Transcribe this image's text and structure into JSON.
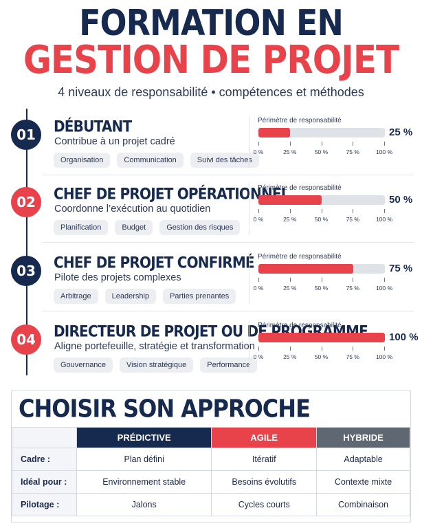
{
  "header": {
    "title_line1": "FORMATION EN",
    "title_line2": "GESTION DE PROJET",
    "subtitle": "4 niveaux de responsabilité • compétences et méthodes"
  },
  "colors": {
    "navy": "#16294f",
    "red": "#e8434a",
    "gray": "#5f6773"
  },
  "perimeter_label": "Périmètre de responsabilité",
  "scale_ticks": [
    "0 %",
    "25 %",
    "50 %",
    "75 %",
    "100 %"
  ],
  "levels": [
    {
      "number": "01",
      "title": "DÉBUTANT",
      "subtitle": "Contribue à un projet cadré",
      "tags": [
        "Organisation",
        "Communication",
        "Suivi des tâches"
      ],
      "percent": 25,
      "percent_label": "25 %"
    },
    {
      "number": "02",
      "title": "CHEF DE PROJET OPÉRATIONNEL",
      "subtitle": "Coordonne l’exécution au quotidien",
      "tags": [
        "Planification",
        "Budget",
        "Gestion des risques"
      ],
      "percent": 50,
      "percent_label": "50 %"
    },
    {
      "number": "03",
      "title": "CHEF DE PROJET CONFIRMÉ",
      "subtitle": "Pilote des projets complexes",
      "tags": [
        "Arbitrage",
        "Leadership",
        "Parties prenantes"
      ],
      "percent": 75,
      "percent_label": "75 %"
    },
    {
      "number": "04",
      "title": "DIRECTEUR DE PROJET OU DE PROGRAMME",
      "subtitle": "Aligne portefeuille, stratégie et transformation",
      "tags": [
        "Gouvernance",
        "Vision stratégique",
        "Performance"
      ],
      "percent": 100,
      "percent_label": "100 %"
    }
  ],
  "approach": {
    "title": "CHOISIR SON APPROCHE",
    "columns": [
      "PRÉDICTIVE",
      "AGILE",
      "HYBRIDE"
    ],
    "rows": [
      {
        "label": "Cadre :",
        "values": [
          "Plan défini",
          "Itératif",
          "Adaptable"
        ]
      },
      {
        "label": "Idéal pour :",
        "values": [
          "Environnement stable",
          "Besoins évolutifs",
          "Contexte mixte"
        ]
      },
      {
        "label": "Pilotage :",
        "values": [
          "Jalons",
          "Cycles courts",
          "Combinaison"
        ]
      }
    ]
  }
}
